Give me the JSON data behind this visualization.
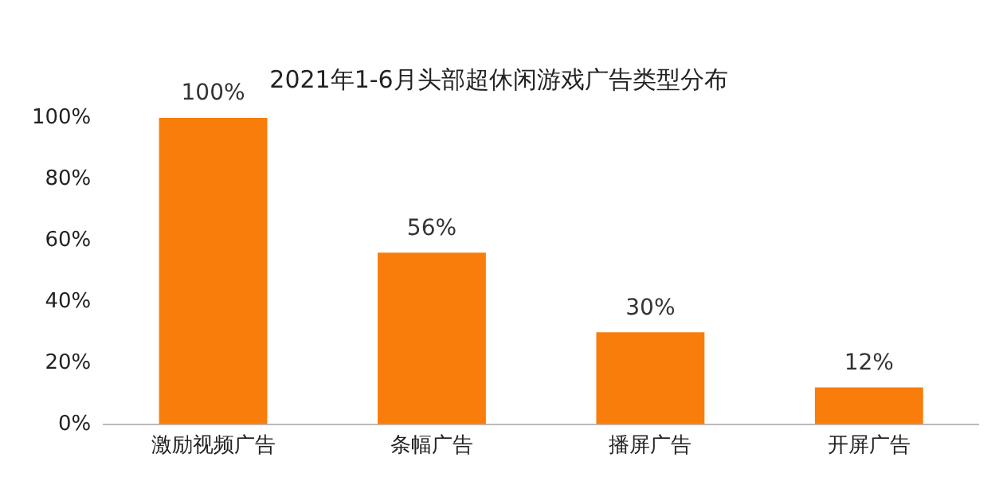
{
  "chart_data": {
    "type": "bar",
    "title": "2021年1-6月头部超休闲游戏广告类型分布",
    "categories": [
      "激励视频广告",
      "条幅广告",
      "播屏广告",
      "开屏广告"
    ],
    "values": [
      100,
      56,
      30,
      12
    ],
    "value_labels": [
      "100%",
      "56%",
      "30%",
      "12%"
    ],
    "color": "#f97d0b",
    "ylim": [
      0,
      100
    ],
    "yticks": [
      {
        "value": 0,
        "label": "0%"
      },
      {
        "value": 20,
        "label": "20%"
      },
      {
        "value": 40,
        "label": "40%"
      },
      {
        "value": 60,
        "label": "60%"
      },
      {
        "value": 80,
        "label": "80%"
      },
      {
        "value": 100,
        "label": "100%"
      }
    ],
    "grid": false,
    "legend": false
  }
}
